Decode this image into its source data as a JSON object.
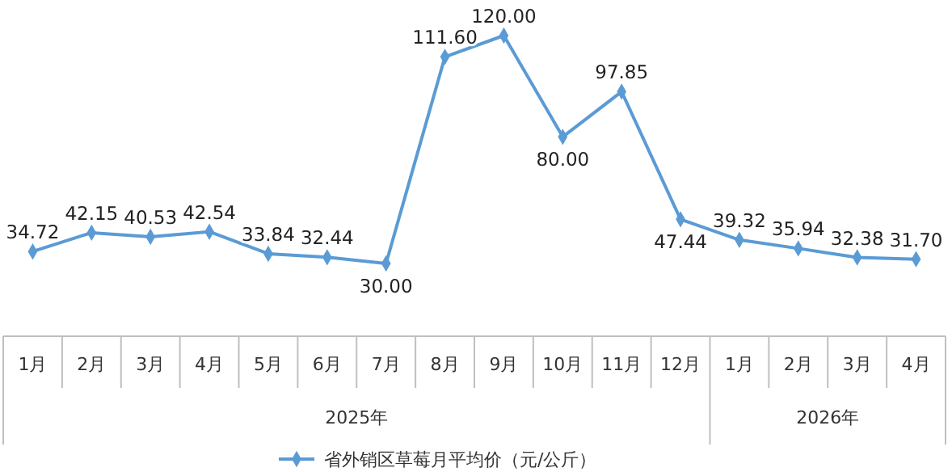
{
  "chart_data": {
    "type": "line",
    "categories": [
      "1月",
      "2月",
      "3月",
      "4月",
      "5月",
      "6月",
      "7月",
      "8月",
      "9月",
      "10月",
      "11月",
      "12月",
      "1月",
      "2月",
      "3月",
      "4月"
    ],
    "series": [
      {
        "name": "省外销区草莓月平均价（元/公斤）",
        "color": "#5b9bd5",
        "values": [
          34.72,
          42.15,
          40.53,
          42.54,
          33.84,
          32.44,
          30.0,
          111.6,
          120.0,
          80.0,
          97.85,
          47.44,
          39.32,
          35.94,
          32.38,
          31.7
        ],
        "value_labels": [
          "34.72",
          "42.15",
          "40.53",
          "42.54",
          "33.84",
          "32.44",
          "30.00",
          "111.60",
          "120.00",
          "80.00",
          "97.85",
          "47.44",
          "39.32",
          "35.94",
          "32.38",
          "31.70"
        ]
      }
    ],
    "annotations": [
      "2025年",
      "2026年"
    ],
    "marker": "diamond",
    "legend": "bottom",
    "relative": false
  }
}
